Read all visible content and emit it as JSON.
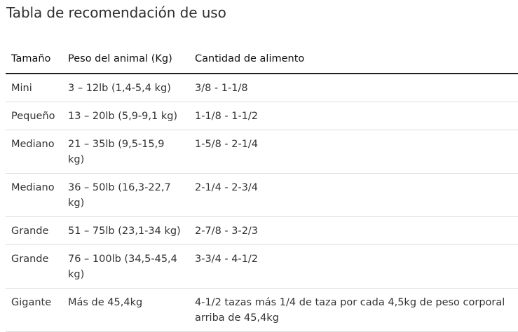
{
  "title": "Tabla de recomendación de uso",
  "table": {
    "headers": [
      "Tamaño",
      "Peso del animal (Kg)",
      "Cantidad de alimento"
    ],
    "rows": [
      [
        "Mini",
        "3 – 12lb (1,4-5,4 kg)",
        "3/8 - 1-1/8"
      ],
      [
        "Pequeño",
        "13 – 20lb (5,9-9,1 kg)",
        "1-1/8 - 1-1/2"
      ],
      [
        "Mediano",
        "21 – 35lb (9,5-15,9 kg)",
        "1-5/8 - 2-1/4"
      ],
      [
        "Mediano",
        "36 – 50lb (16,3-22,7 kg)",
        "2-1/4 - 2-3/4"
      ],
      [
        "Grande",
        "51 – 75lb (23,1-34 kg)",
        "2-7/8 - 3-2/3"
      ],
      [
        "Grande",
        "76 – 100lb (34,5-45,4 kg)",
        "3-3/4 - 4-1/2"
      ],
      [
        "Gigante",
        "Más de 45,4kg",
        "4-1/2 tazas más 1/4 de taza por cada 4,5kg de peso corporal arriba de 45,4kg"
      ]
    ]
  }
}
